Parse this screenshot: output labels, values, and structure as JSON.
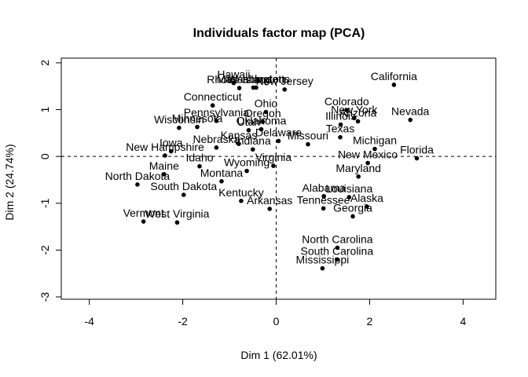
{
  "chart_data": {
    "type": "scatter",
    "title": "Individuals factor map (PCA)",
    "xlabel": "Dim 1 (62.01%)",
    "ylabel": "Dim 2 (24.74%)",
    "xlim": [
      -4.6,
      4.7
    ],
    "ylim": [
      -3.05,
      2.1
    ],
    "xticks": [
      -4,
      -2,
      0,
      2,
      4
    ],
    "yticks": [
      -3,
      -2,
      -1,
      0,
      1,
      2
    ],
    "xtick_labels": [
      "-4",
      "-2",
      "0",
      "2",
      "4"
    ],
    "ytick_labels": [
      "-3",
      "-2",
      "-1",
      "0",
      "1",
      "2"
    ],
    "reference_lines": {
      "x": 0,
      "y": 0,
      "style": "dashed"
    },
    "grid": false,
    "legend": "none",
    "points": [
      {
        "label": "Alabama",
        "x": 1.02,
        "y": -0.85
      },
      {
        "label": "Alaska",
        "x": 1.94,
        "y": -1.07
      },
      {
        "label": "Arizona",
        "x": 1.75,
        "y": 0.75
      },
      {
        "label": "Arkansas",
        "x": -0.14,
        "y": -1.12
      },
      {
        "label": "California",
        "x": 2.52,
        "y": 1.53
      },
      {
        "label": "Colorado",
        "x": 1.51,
        "y": 0.99
      },
      {
        "label": "Connecticut",
        "x": -1.36,
        "y": 1.09
      },
      {
        "label": "Delaware",
        "x": 0.05,
        "y": 0.33
      },
      {
        "label": "Florida",
        "x": 3.01,
        "y": -0.04
      },
      {
        "label": "Georgia",
        "x": 1.64,
        "y": -1.28
      },
      {
        "label": "Hawaii",
        "x": -0.91,
        "y": 1.57
      },
      {
        "label": "Idaho",
        "x": -1.64,
        "y": -0.21
      },
      {
        "label": "Illinois",
        "x": 1.38,
        "y": 0.68
      },
      {
        "label": "Indiana",
        "x": -0.5,
        "y": 0.15
      },
      {
        "label": "Iowa",
        "x": -2.25,
        "y": 0.11
      },
      {
        "label": "Kansas",
        "x": -0.8,
        "y": 0.27
      },
      {
        "label": "Kentucky",
        "x": -0.75,
        "y": -0.95
      },
      {
        "label": "Louisiana",
        "x": 1.56,
        "y": -0.87
      },
      {
        "label": "Maine",
        "x": -2.4,
        "y": -0.38
      },
      {
        "label": "Maryland",
        "x": 1.76,
        "y": -0.43
      },
      {
        "label": "Massachusetts",
        "x": -0.49,
        "y": 1.47
      },
      {
        "label": "Michigan",
        "x": 2.11,
        "y": 0.16
      },
      {
        "label": "Minnesota",
        "x": -1.69,
        "y": 0.63
      },
      {
        "label": "Mississippi",
        "x": 0.99,
        "y": -2.39
      },
      {
        "label": "Missouri",
        "x": 0.68,
        "y": 0.26
      },
      {
        "label": "Montana",
        "x": -1.17,
        "y": -0.53
      },
      {
        "label": "Nebraska",
        "x": -1.28,
        "y": 0.19
      },
      {
        "label": "Nevada",
        "x": 2.87,
        "y": 0.78
      },
      {
        "label": "New Hampshire",
        "x": -2.38,
        "y": 0.02
      },
      {
        "label": "New Jersey",
        "x": 0.18,
        "y": 1.43
      },
      {
        "label": "New Mexico",
        "x": 1.96,
        "y": -0.14
      },
      {
        "label": "New York",
        "x": 1.67,
        "y": 0.82
      },
      {
        "label": "North Carolina",
        "x": 1.31,
        "y": -1.95
      },
      {
        "label": "North Dakota",
        "x": -2.97,
        "y": -0.6
      },
      {
        "label": "Ohio",
        "x": -0.22,
        "y": 0.95
      },
      {
        "label": "Oklahoma",
        "x": -0.32,
        "y": 0.58
      },
      {
        "label": "Oregon",
        "x": -0.29,
        "y": 0.74
      },
      {
        "label": "Pennsylvania",
        "x": -1.28,
        "y": 0.76
      },
      {
        "label": "Rhode Island",
        "x": -0.79,
        "y": 1.46
      },
      {
        "label": "South Carolina",
        "x": 1.3,
        "y": -2.2
      },
      {
        "label": "South Dakota",
        "x": -1.98,
        "y": -0.82
      },
      {
        "label": "Tennessee",
        "x": 1.01,
        "y": -1.11
      },
      {
        "label": "Texas",
        "x": 1.37,
        "y": 0.41
      },
      {
        "label": "Utah",
        "x": -0.59,
        "y": 0.56
      },
      {
        "label": "Vermont",
        "x": -2.84,
        "y": -1.39
      },
      {
        "label": "Virginia",
        "x": -0.06,
        "y": -0.2
      },
      {
        "label": "Washington",
        "x": -0.43,
        "y": 1.47
      },
      {
        "label": "West Virginia",
        "x": -2.12,
        "y": -1.41
      },
      {
        "label": "Wisconsin",
        "x": -2.08,
        "y": 0.61
      },
      {
        "label": "Wyoming",
        "x": -0.63,
        "y": -0.31
      }
    ]
  }
}
